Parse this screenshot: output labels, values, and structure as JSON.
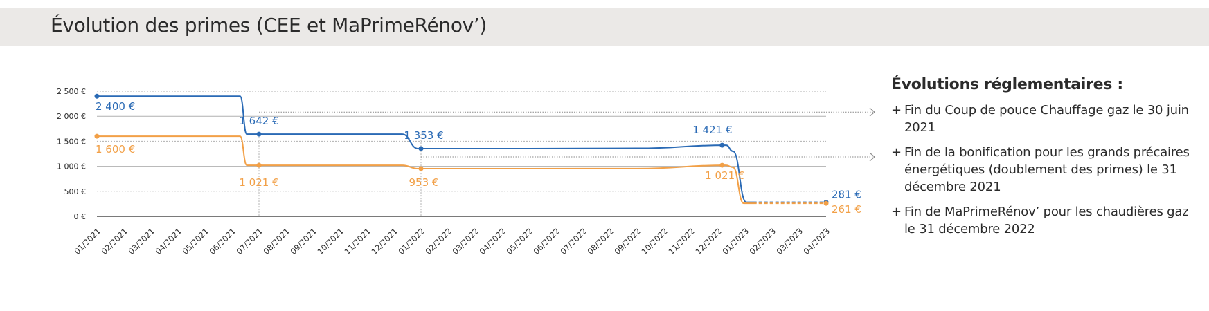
{
  "header": {
    "title": "Évolution des primes (CEE et MaPrimeRénov’)"
  },
  "panel": {
    "title": "Évolutions réglementaires :",
    "bullet": "+",
    "notes": [
      "Fin du Coup de pouce Chauffage gaz le 30 juin 2021",
      "Fin de la bonification pour les grands précaires énergétiques (doublement des primes) le 31 décembre 2021",
      "Fin de MaPrimeRénov’ pour les chaudières gaz le 31 décembre 2022"
    ]
  },
  "colors": {
    "blue": "#2a6ab5",
    "orange": "#f2a047",
    "grid": "#b0b0b0",
    "axis": "#2b2b2b",
    "arrow": "#8a8a8a"
  },
  "chart_data": {
    "type": "line",
    "title": "",
    "xlabel": "",
    "ylabel": "",
    "ylim": [
      0,
      2500
    ],
    "yticks": [
      {
        "value": 0,
        "label": "0 €"
      },
      {
        "value": 500,
        "label": "500 €"
      },
      {
        "value": 1000,
        "label": "1 000 €"
      },
      {
        "value": 1500,
        "label": "1 500 €"
      },
      {
        "value": 2000,
        "label": "2 000 €"
      },
      {
        "value": 2500,
        "label": "2 500 €"
      }
    ],
    "categories": [
      "01/2021",
      "02/2021",
      "03/2021",
      "04/2021",
      "05/2021",
      "06/2021",
      "07/2021",
      "08/2021",
      "09/2021",
      "10/2021",
      "11/2021",
      "12/2021",
      "01/2022",
      "02/2022",
      "03/2022",
      "04/2022",
      "05/2022",
      "06/2022",
      "07/2022",
      "08/2022",
      "09/2022",
      "10/2022",
      "11/2022",
      "12/2022",
      "01/2023",
      "02/2023",
      "03/2023",
      "04/2023"
    ],
    "grid": true,
    "series": [
      {
        "color": "#2a6ab5",
        "points": [
          {
            "x": 0,
            "y": 2400
          },
          {
            "x": 5.3,
            "y": 2400
          },
          {
            "x": 5.55,
            "y": 1642
          },
          {
            "x": 6,
            "y": 1642
          },
          {
            "x": 11.3,
            "y": 1642
          },
          {
            "x": 11.9,
            "y": 1353
          },
          {
            "x": 12,
            "y": 1353
          },
          {
            "x": 16,
            "y": 1353
          },
          {
            "x": 20,
            "y": 1360
          },
          {
            "x": 23.3,
            "y": 1421
          },
          {
            "x": 23.55,
            "y": 1300
          },
          {
            "x": 24.05,
            "y": 281
          },
          {
            "x": 24.3,
            "y": 281
          }
        ],
        "projection": [
          {
            "x": 24.3,
            "y": 281
          },
          {
            "x": 27,
            "y": 281
          }
        ],
        "markers": [
          0,
          6,
          12,
          23.15,
          27
        ],
        "marker_values": [
          2400,
          1642,
          1353,
          1421,
          281
        ],
        "labels": [
          {
            "x": 0,
            "y": 2400,
            "text": "2 400 €"
          },
          {
            "x": 6,
            "y": 1642,
            "text": "1 642 €"
          },
          {
            "x": 12,
            "y": 1353,
            "text": "1 353 €"
          },
          {
            "x": 23.15,
            "y": 1421,
            "text": "1 421 €"
          },
          {
            "x": 27,
            "y": 281,
            "text": "281 €"
          }
        ]
      },
      {
        "color": "#f2a047",
        "points": [
          {
            "x": 0,
            "y": 1600
          },
          {
            "x": 5.3,
            "y": 1600
          },
          {
            "x": 5.55,
            "y": 1021
          },
          {
            "x": 6,
            "y": 1021
          },
          {
            "x": 11.3,
            "y": 1021
          },
          {
            "x": 11.9,
            "y": 953
          },
          {
            "x": 12,
            "y": 953
          },
          {
            "x": 16,
            "y": 953
          },
          {
            "x": 20,
            "y": 955
          },
          {
            "x": 23.3,
            "y": 1021
          },
          {
            "x": 23.55,
            "y": 980
          },
          {
            "x": 23.95,
            "y": 261
          },
          {
            "x": 24.3,
            "y": 261
          }
        ],
        "projection": [
          {
            "x": 24.3,
            "y": 261
          },
          {
            "x": 27,
            "y": 261
          }
        ],
        "markers": [
          0,
          6,
          12,
          23.15,
          27
        ],
        "marker_values": [
          1600,
          1021,
          953,
          1021,
          261
        ],
        "labels": [
          {
            "x": 0,
            "y": 1600,
            "text": "1 600 €"
          },
          {
            "x": 6,
            "y": 1021,
            "text": "1 021 €"
          },
          {
            "x": 12,
            "y": 953,
            "text": "953 €"
          },
          {
            "x": 23.15,
            "y": 1021,
            "text": "1 021 €"
          },
          {
            "x": 27,
            "y": 261,
            "text": "261 €"
          }
        ]
      }
    ],
    "event_lines": [
      6,
      12
    ]
  }
}
